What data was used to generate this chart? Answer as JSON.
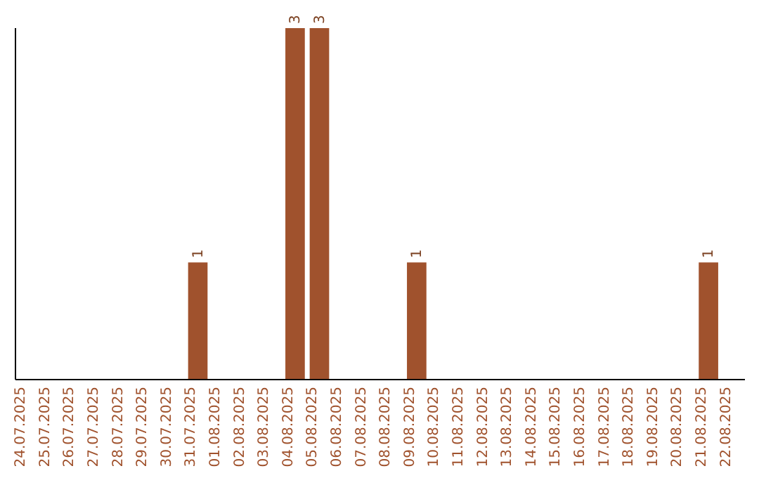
{
  "chart_data": {
    "type": "bar",
    "categories": [
      "24.07.2025",
      "25.07.2025",
      "26.07.2025",
      "27.07.2025",
      "28.07.2025",
      "29.07.2025",
      "30.07.2025",
      "31.07.2025",
      "01.08.2025",
      "02.08.2025",
      "03.08.2025",
      "04.08.2025",
      "05.08.2025",
      "06.08.2025",
      "07.08.2025",
      "08.08.2025",
      "09.08.2025",
      "10.08.2025",
      "11.08.2025",
      "12.08.2025",
      "13.08.2025",
      "14.08.2025",
      "15.08.2025",
      "16.08.2025",
      "17.08.2025",
      "18.08.2025",
      "19.08.2025",
      "20.08.2025",
      "21.08.2025",
      "22.08.2025"
    ],
    "values": [
      0,
      0,
      0,
      0,
      0,
      0,
      0,
      1,
      0,
      0,
      0,
      3,
      3,
      0,
      0,
      0,
      1,
      0,
      0,
      0,
      0,
      0,
      0,
      0,
      0,
      0,
      0,
      0,
      1,
      0
    ],
    "value_labels": [
      null,
      null,
      null,
      null,
      null,
      null,
      null,
      "1",
      null,
      null,
      null,
      "3",
      "3",
      null,
      null,
      null,
      "1",
      null,
      null,
      null,
      null,
      null,
      null,
      null,
      null,
      null,
      null,
      null,
      "1",
      null
    ],
    "color": "#a0522d",
    "ylim": [
      0,
      3
    ],
    "tick_labels": "x"
  }
}
